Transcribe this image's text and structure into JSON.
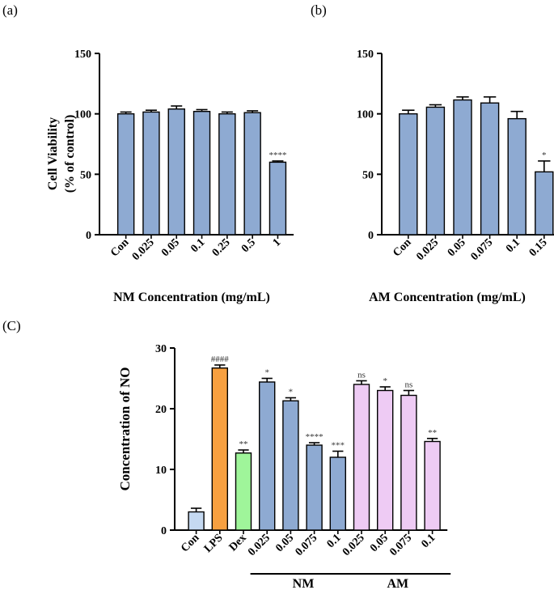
{
  "chart_data": [
    {
      "panel": "(a)",
      "type": "bar",
      "categories": [
        "Con",
        "0.025",
        "0.05",
        "0.1",
        "0.25",
        "0.5",
        "1"
      ],
      "values": [
        100,
        101.5,
        104,
        102,
        100,
        101,
        60
      ],
      "errors": [
        1.5,
        1.5,
        2.5,
        1.5,
        1.5,
        1.5,
        1
      ],
      "significance": [
        "",
        "",
        "",
        "",
        "",
        "",
        "****"
      ],
      "colors": [
        "#8eaad2",
        "#8eaad2",
        "#8eaad2",
        "#8eaad2",
        "#8eaad2",
        "#8eaad2",
        "#8eaad2"
      ],
      "yticks": [
        0,
        50,
        100,
        150
      ],
      "ylim": [
        0,
        150
      ],
      "ylabel_line1": "Cell Viability",
      "ylabel_line2": "(% of control)",
      "xlabel": "NM Concentration (mg/mL)"
    },
    {
      "panel": "(b)",
      "type": "bar",
      "categories": [
        "Con",
        "0.025",
        "0.05",
        "0.075",
        "0.1",
        "0.15"
      ],
      "values": [
        100,
        105.5,
        111.5,
        109,
        96,
        52
      ],
      "errors": [
        3,
        2,
        2.5,
        5,
        6,
        9
      ],
      "significance": [
        "",
        "",
        "",
        "",
        "",
        "*"
      ],
      "colors": [
        "#8eaad2",
        "#8eaad2",
        "#8eaad2",
        "#8eaad2",
        "#8eaad2",
        "#8eaad2"
      ],
      "yticks": [
        0,
        50,
        100,
        150
      ],
      "ylim": [
        0,
        150
      ],
      "ylabel_line1": "",
      "ylabel_line2": "",
      "xlabel": "AM Concentration (mg/mL)"
    },
    {
      "panel": "(C)",
      "type": "bar",
      "categories": [
        "Con",
        "LPS",
        "Dex",
        "0.025",
        "0.05",
        "0.075",
        "0.1",
        "0.025",
        "0.05",
        "0.075",
        "0.1"
      ],
      "values": [
        3,
        26.7,
        12.7,
        24.4,
        21.3,
        14,
        12,
        24,
        23,
        22.2,
        14.6
      ],
      "errors": [
        0.6,
        0.5,
        0.5,
        0.6,
        0.5,
        0.4,
        1,
        0.6,
        0.6,
        0.8,
        0.5
      ],
      "significance": [
        "",
        "####",
        "**",
        "*",
        "*",
        "****",
        "***",
        "ns",
        "*",
        "ns",
        "**"
      ],
      "colors": [
        "#c5d9f1",
        "#f7a040",
        "#9ff59a",
        "#8eaad2",
        "#8eaad2",
        "#8eaad2",
        "#8eaad2",
        "#eecbf4",
        "#eecbf4",
        "#eecbf4",
        "#eecbf4"
      ],
      "yticks": [
        0,
        10,
        20,
        30
      ],
      "ylim": [
        0,
        30
      ],
      "ylabel_line1": "Concentration of NO",
      "ylabel_line2": "",
      "xlabel": "",
      "groups": [
        {
          "label": "NM",
          "from": 3,
          "to": 6
        },
        {
          "label": "AM",
          "from": 7,
          "to": 10
        }
      ]
    }
  ]
}
